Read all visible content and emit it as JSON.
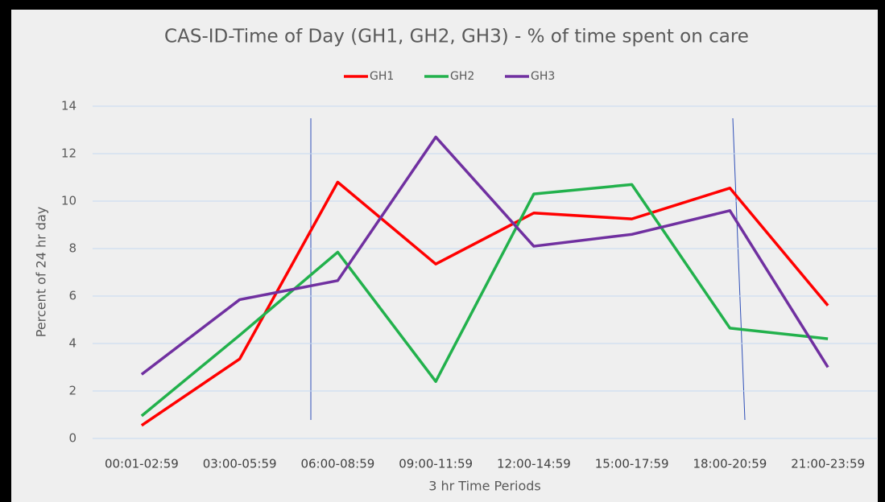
{
  "chart_data": {
    "type": "line",
    "title": "CAS-ID-Time of Day (GH1, GH2, GH3) - % of time spent on care",
    "x_label": "3 hr Time Periods",
    "y_label": "Percent of 24 hr day",
    "categories": [
      "00:01-02:59",
      "03:00-05:59",
      "06:00-08:59",
      "09:00-11:59",
      "12:00-14:59",
      "15:00-17:59",
      "18:00-20:59",
      "21:00-23:59"
    ],
    "series": [
      {
        "name": "GH1",
        "color": "#ff0000",
        "values": [
          0.55,
          3.35,
          10.8,
          7.35,
          9.5,
          9.25,
          10.55,
          5.6
        ]
      },
      {
        "name": "GH2",
        "color": "#22b14c",
        "values": [
          0.95,
          4.35,
          7.85,
          2.4,
          10.3,
          10.7,
          4.65,
          4.2
        ]
      },
      {
        "name": "GH3",
        "color": "#7030a0",
        "values": [
          2.7,
          5.85,
          6.65,
          12.7,
          8.1,
          8.6,
          9.6,
          3.0
        ]
      }
    ],
    "ylim": [
      0,
      14
    ],
    "yticks": [
      0,
      2,
      4,
      6,
      8,
      10,
      12,
      14
    ],
    "grid": true,
    "legend": "top"
  }
}
